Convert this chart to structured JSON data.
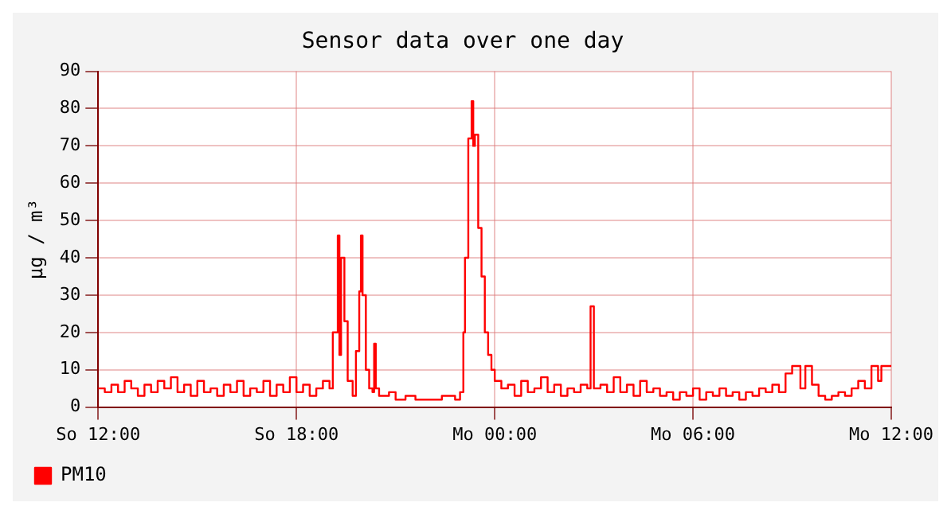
{
  "chart_data": {
    "type": "step",
    "title": "Sensor data over one day",
    "ylabel": "µg / m³",
    "xlim": [
      "--01-07T12:00",
      "--01-08T12:00"
    ],
    "xticks": [
      {
        "value": "--01-07T12:00",
        "label": "So 12:00"
      },
      {
        "value": "--01-07T18:00",
        "label": "So 18:00"
      },
      {
        "value": "--01-08T00:00",
        "label": "Mo 00:00"
      },
      {
        "value": "--01-08T06:00",
        "label": "Mo 06:00"
      },
      {
        "value": "--01-08T12:00",
        "label": "Mo 12:00"
      }
    ],
    "ylim": [
      0,
      90
    ],
    "yticks": [
      0,
      10,
      20,
      30,
      40,
      50,
      60,
      70,
      80,
      90
    ],
    "grid": true,
    "legend": "bottom left",
    "marker": "none",
    "line_style": "solid",
    "series": [
      {
        "name": "PM10",
        "color": "#ff0000",
        "x": [
          "--01-07T12:00",
          "--01-07T12:12",
          "--01-07T12:24",
          "--01-07T12:36",
          "--01-07T12:48",
          "--01-07T13:00",
          "--01-07T13:12",
          "--01-07T13:24",
          "--01-07T13:36",
          "--01-07T13:48",
          "--01-07T14:00",
          "--01-07T14:12",
          "--01-07T14:24",
          "--01-07T14:36",
          "--01-07T14:48",
          "--01-07T15:00",
          "--01-07T15:12",
          "--01-07T15:24",
          "--01-07T15:36",
          "--01-07T15:48",
          "--01-07T16:00",
          "--01-07T16:12",
          "--01-07T16:24",
          "--01-07T16:36",
          "--01-07T16:48",
          "--01-07T17:00",
          "--01-07T17:12",
          "--01-07T17:24",
          "--01-07T17:36",
          "--01-07T17:48",
          "--01-07T18:00",
          "--01-07T18:12",
          "--01-07T18:24",
          "--01-07T18:36",
          "--01-07T18:48",
          "--01-07T19:00",
          "--01-07T19:06",
          "--01-07T19:15",
          "--01-07T19:18",
          "--01-07T19:21",
          "--01-07T19:27",
          "--01-07T19:33",
          "--01-07T19:42",
          "--01-07T19:48",
          "--01-07T19:54",
          "--01-07T19:57",
          "--01-07T20:00",
          "--01-07T20:06",
          "--01-07T20:12",
          "--01-07T20:18",
          "--01-07T20:21",
          "--01-07T20:24",
          "--01-07T20:30",
          "--01-07T20:48",
          "--01-07T21:00",
          "--01-07T21:18",
          "--01-07T21:36",
          "--01-07T22:00",
          "--01-07T22:24",
          "--01-07T22:48",
          "--01-07T22:57",
          "--01-07T23:03",
          "--01-07T23:06",
          "--01-07T23:12",
          "--01-07T23:18",
          "--01-07T23:21",
          "--01-07T23:24",
          "--01-07T23:30",
          "--01-07T23:36",
          "--01-07T23:42",
          "--01-07T23:48",
          "--01-07T23:54",
          "--01-08T00:00",
          "--01-08T00:12",
          "--01-08T00:24",
          "--01-08T00:36",
          "--01-08T00:48",
          "--01-08T01:00",
          "--01-08T01:12",
          "--01-08T01:24",
          "--01-08T01:36",
          "--01-08T01:48",
          "--01-08T02:00",
          "--01-08T02:12",
          "--01-08T02:24",
          "--01-08T02:36",
          "--01-08T02:48",
          "--01-08T02:54",
          "--01-08T03:00",
          "--01-08T03:12",
          "--01-08T03:24",
          "--01-08T03:36",
          "--01-08T03:48",
          "--01-08T04:00",
          "--01-08T04:12",
          "--01-08T04:24",
          "--01-08T04:36",
          "--01-08T04:48",
          "--01-08T05:00",
          "--01-08T05:12",
          "--01-08T05:24",
          "--01-08T05:36",
          "--01-08T05:48",
          "--01-08T06:00",
          "--01-08T06:12",
          "--01-08T06:24",
          "--01-08T06:36",
          "--01-08T06:48",
          "--01-08T07:00",
          "--01-08T07:12",
          "--01-08T07:24",
          "--01-08T07:36",
          "--01-08T07:48",
          "--01-08T08:00",
          "--01-08T08:12",
          "--01-08T08:24",
          "--01-08T08:36",
          "--01-08T08:48",
          "--01-08T09:00",
          "--01-08T09:15",
          "--01-08T09:24",
          "--01-08T09:36",
          "--01-08T09:48",
          "--01-08T10:00",
          "--01-08T10:12",
          "--01-08T10:24",
          "--01-08T10:36",
          "--01-08T10:48",
          "--01-08T11:00",
          "--01-08T11:12",
          "--01-08T11:24",
          "--01-08T11:36",
          "--01-08T11:42",
          "--01-08T12:00"
        ],
        "values": [
          5,
          4,
          6,
          4,
          7,
          5,
          3,
          6,
          4,
          7,
          5,
          8,
          4,
          6,
          3,
          7,
          4,
          5,
          3,
          6,
          4,
          7,
          3,
          5,
          4,
          7,
          3,
          6,
          4,
          8,
          4,
          6,
          3,
          5,
          7,
          5,
          20,
          46,
          14,
          40,
          23,
          7,
          3,
          15,
          31,
          46,
          30,
          10,
          5,
          4,
          17,
          5,
          3,
          4,
          2,
          3,
          2,
          2,
          3,
          2,
          4,
          20,
          40,
          72,
          82,
          70,
          73,
          48,
          35,
          20,
          14,
          10,
          7,
          5,
          6,
          3,
          7,
          4,
          5,
          8,
          4,
          6,
          3,
          5,
          4,
          6,
          5,
          27,
          5,
          6,
          4,
          8,
          4,
          6,
          3,
          7,
          4,
          5,
          3,
          4,
          2,
          4,
          3,
          5,
          2,
          4,
          3,
          5,
          3,
          4,
          2,
          4,
          3,
          5,
          4,
          6,
          4,
          9,
          11,
          5,
          11,
          6,
          3,
          2,
          3,
          4,
          3,
          5,
          7,
          5,
          11,
          7,
          11,
          11
        ]
      }
    ]
  }
}
